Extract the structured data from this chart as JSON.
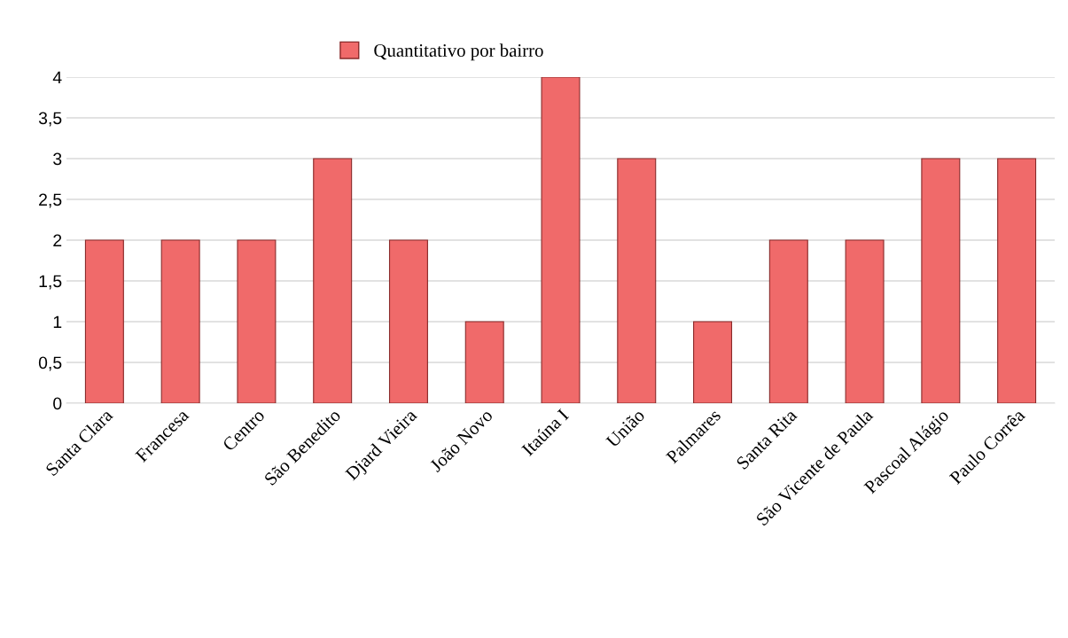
{
  "chart_data": {
    "type": "bar",
    "categories": [
      "Santa Clara",
      "Francesa",
      "Centro",
      "São Benedito",
      "Djard Vieira",
      "João Novo",
      "Itaúna I",
      "União",
      "Palmares",
      "Santa Rita",
      "São Vicente de Paula",
      "Pascoal Alágio",
      "Paulo Corrêa"
    ],
    "series": [
      {
        "name": "Quantitativo por bairro",
        "color": "#f06a6a",
        "values": [
          2,
          2,
          2,
          3,
          2,
          1,
          4,
          3,
          1,
          2,
          2,
          3,
          3
        ]
      }
    ],
    "ylim": [
      0,
      4
    ],
    "yticks": [
      0,
      {
        "value": 0.5,
        "label": "0,5"
      },
      1,
      {
        "value": 1.5,
        "label": "1,5"
      },
      2,
      {
        "value": 2.5,
        "label": "2,5"
      },
      3,
      {
        "value": 3.5,
        "label": "3,5"
      },
      4
    ],
    "grid": "y",
    "legend": "top"
  }
}
